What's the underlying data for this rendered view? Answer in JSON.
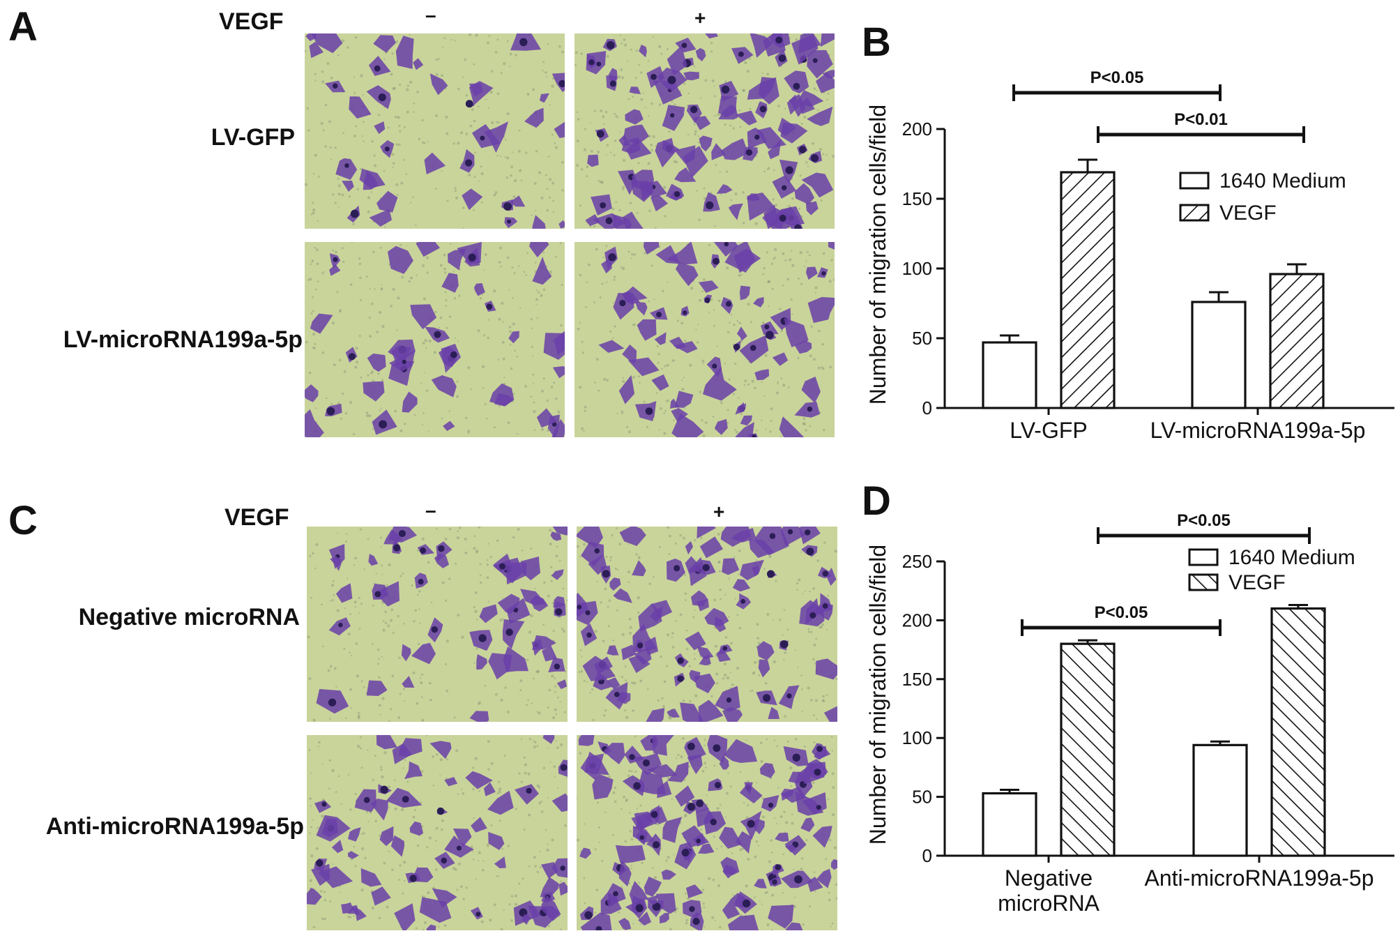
{
  "figure": {
    "panel_labels": {
      "a": "A",
      "b": "B",
      "c": "C",
      "d": "D"
    },
    "panel_a": {
      "factor_label": "VEGF",
      "col_minus": "–",
      "col_plus": "+",
      "rows": [
        "LV-GFP",
        "LV-microRNA199a-5p"
      ]
    },
    "panel_c": {
      "factor_label": "VEGF",
      "col_minus": "–",
      "col_plus": "+",
      "rows": [
        "Negative microRNA",
        "Anti-microRNA199a-5p"
      ]
    },
    "micrograph_colors": {
      "background": "#c9d49a",
      "cells": "#6a3fa8",
      "cell_dark": "#2b1d55"
    }
  },
  "chart_data": [
    {
      "id": "B",
      "type": "bar",
      "ylabel": "Number of migration cells/field",
      "xlabel": "",
      "ylim": [
        0,
        200
      ],
      "yticks": [
        0,
        50,
        100,
        150,
        200
      ],
      "categories": [
        "LV-GFP",
        "LV-microRNA199a-5p"
      ],
      "series": [
        {
          "name": "1640 Medium",
          "pattern": "open",
          "values": [
            47,
            76
          ],
          "errors": [
            5,
            7
          ]
        },
        {
          "name": "VEGF",
          "pattern": "hatch-forward",
          "values": [
            169,
            96
          ],
          "errors": [
            9,
            7
          ]
        }
      ],
      "significance": [
        {
          "label": "P<0.05",
          "from": [
            0,
            0
          ],
          "to": [
            1,
            0
          ]
        },
        {
          "label": "P<0.01",
          "from": [
            0,
            1
          ],
          "to": [
            1,
            1
          ]
        }
      ],
      "legend_position": "right",
      "grid": false
    },
    {
      "id": "D",
      "type": "bar",
      "ylabel": "Number of migration cells/field",
      "xlabel": "",
      "ylim": [
        0,
        250
      ],
      "yticks": [
        0,
        50,
        100,
        150,
        200,
        250
      ],
      "categories": [
        "Negative\nmicroRNA",
        "Anti-microRNA199a-5p"
      ],
      "series": [
        {
          "name": "1640 Medium",
          "pattern": "open",
          "values": [
            53,
            94
          ],
          "errors": [
            3,
            3
          ]
        },
        {
          "name": "VEGF",
          "pattern": "hatch-back",
          "values": [
            180,
            210
          ],
          "errors": [
            3,
            3
          ]
        }
      ],
      "significance": [
        {
          "label": "P<0.05",
          "from": [
            0,
            1
          ],
          "to": [
            1,
            1
          ]
        },
        {
          "label": "P<0.05",
          "from": [
            0,
            0
          ],
          "to": [
            1,
            0
          ]
        }
      ],
      "legend_position": "top-right",
      "grid": false
    }
  ]
}
